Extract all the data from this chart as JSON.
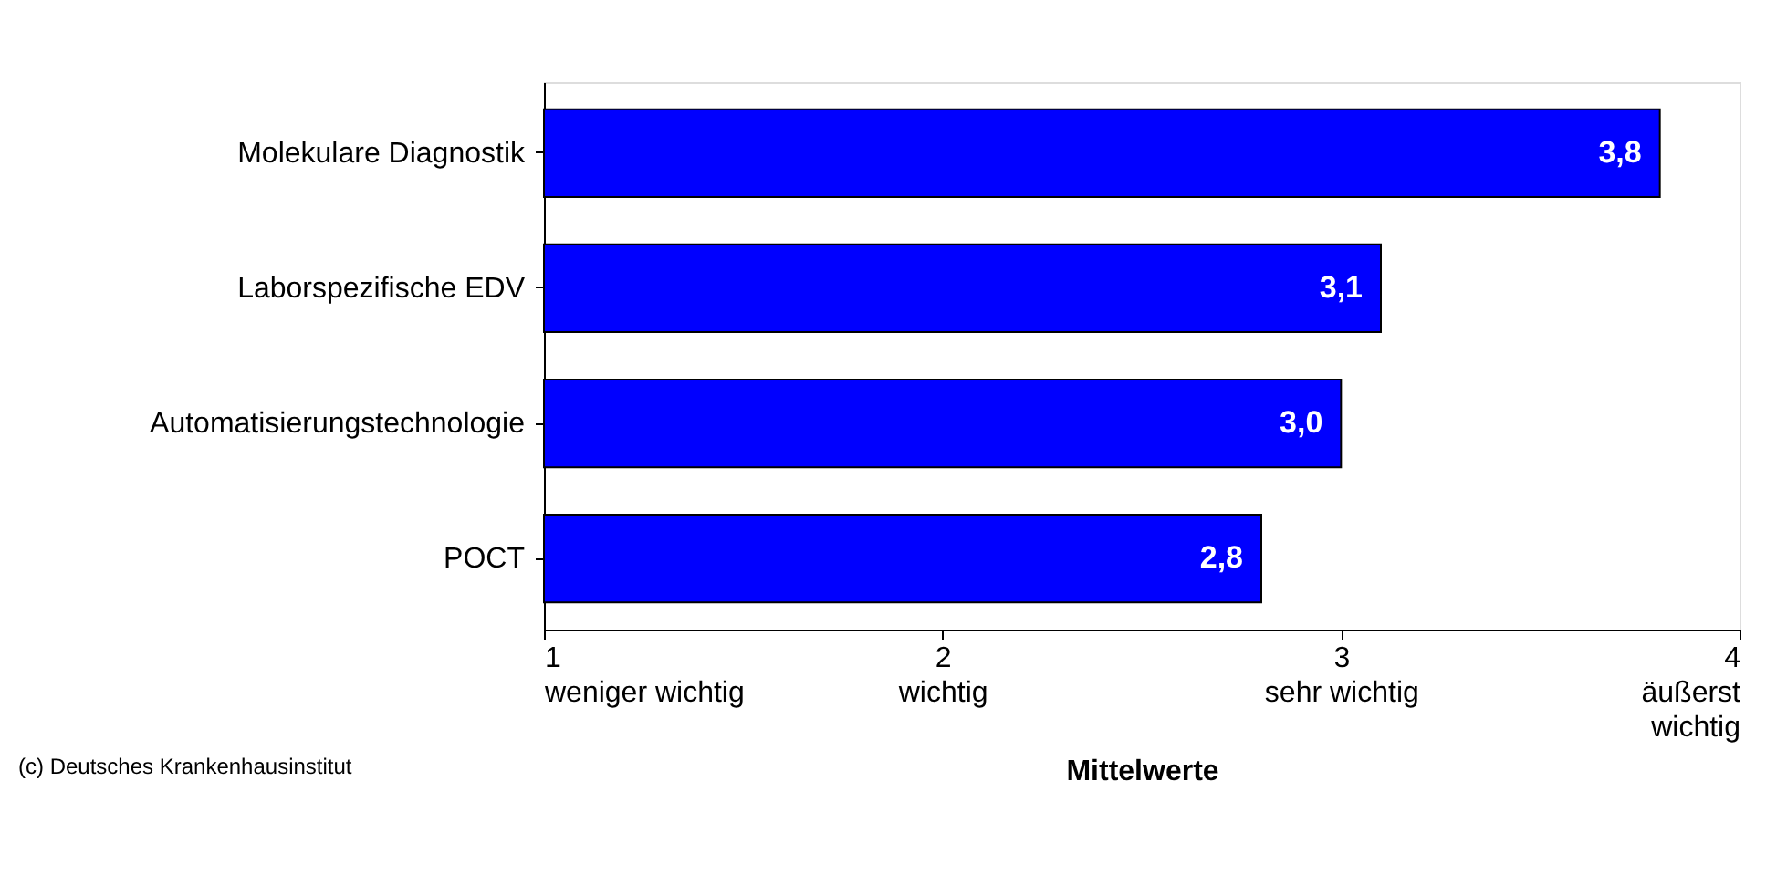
{
  "chart_data": {
    "type": "bar",
    "orientation": "horizontal",
    "xlabel": "Mittelwerte",
    "categories": [
      "Molekulare Diagnostik",
      "Laborspezifische EDV",
      "Automatisierungstechnologie",
      "POCT"
    ],
    "values": [
      3.8,
      3.1,
      3.0,
      2.8
    ],
    "value_labels": [
      "3,8",
      "3,1",
      "3,0",
      "2,8"
    ],
    "color": "#0000ff",
    "xlim": [
      1,
      4
    ],
    "xticks": [
      {
        "value": 1,
        "label": "1\nweniger wichtig"
      },
      {
        "value": 2,
        "label": "2\nwichtig"
      },
      {
        "value": 3,
        "label": "3\nsehr wichtig"
      },
      {
        "value": 4,
        "label": "4\näußerst\nwichtig"
      }
    ],
    "grid": false,
    "annotations": [
      "(c) Deutsches Krankenhausinstitut"
    ]
  }
}
